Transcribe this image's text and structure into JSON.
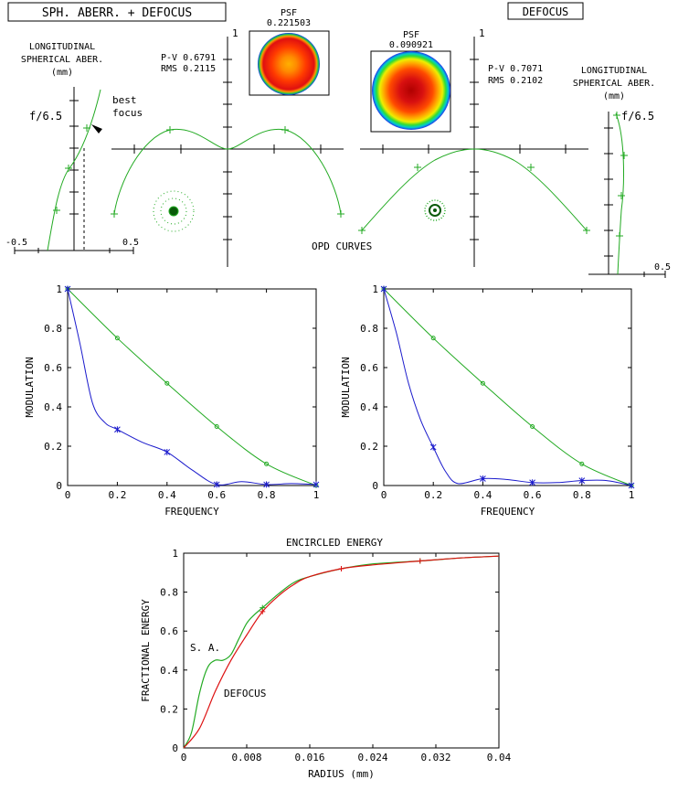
{
  "header": {
    "left_title": "SPH. ABERR. + DEFOCUS",
    "right_title": "DEFOCUS"
  },
  "psf": {
    "left": {
      "label": "PSF",
      "value": "0.221503"
    },
    "right": {
      "label": "PSF",
      "value": "0.090921"
    }
  },
  "stats": {
    "left": {
      "pv": "P-V 0.6791",
      "rms": "RMS 0.2115"
    },
    "right": {
      "pv": "P-V 0.7071",
      "rms": "RMS 0.2102"
    }
  },
  "lsa": {
    "left": {
      "title_lines": [
        "LONGITUDINAL",
        "SPHERICAL ABER.",
        "(mm)"
      ],
      "fnum": "f/6.5",
      "tick_min": "-0.5",
      "tick_max": "0.5",
      "best_focus_lines": [
        "best",
        "focus"
      ]
    },
    "right": {
      "title_lines": [
        "LONGITUDINAL",
        "SPHERICAL ABER.",
        "(mm)"
      ],
      "fnum": "f/6.5",
      "tick_max": "0.5"
    }
  },
  "opd_label": "OPD CURVES",
  "opd_axis_label": "1",
  "colors": {
    "curve": "#22aa22",
    "mtf_diff": "#22aa22",
    "mtf_real": "#1a1acc",
    "ee_sa": "#22aa22",
    "ee_defocus": "#dd1111",
    "axis": "#000000"
  },
  "chart_data": [
    {
      "type": "line",
      "id": "mtf_left",
      "xlabel": "FREQUENCY",
      "ylabel": "MODULATION",
      "xlim": [
        0,
        1
      ],
      "ylim": [
        0,
        1
      ],
      "x_ticks": [
        "0",
        "0.2",
        "0.4",
        "0.6",
        "0.8",
        "1"
      ],
      "y_ticks": [
        "0",
        "0.2",
        "0.4",
        "0.6",
        "0.8",
        "1"
      ],
      "series": [
        {
          "key": "diffraction",
          "x": [
            0,
            0.2,
            0.4,
            0.6,
            0.8,
            1.0
          ],
          "y": [
            1.0,
            0.75,
            0.52,
            0.3,
            0.11,
            0.0
          ]
        },
        {
          "key": "aberrated",
          "x": [
            0,
            0.05,
            0.1,
            0.15,
            0.2,
            0.3,
            0.4,
            0.5,
            0.6,
            0.7,
            0.8,
            0.9,
            1.0
          ],
          "y": [
            1.0,
            0.72,
            0.42,
            0.32,
            0.285,
            0.22,
            0.17,
            0.08,
            0.005,
            0.02,
            0.005,
            0.01,
            0.005
          ]
        }
      ]
    },
    {
      "type": "line",
      "id": "mtf_right",
      "xlabel": "FREQUENCY",
      "ylabel": "MODULATION",
      "xlim": [
        0,
        1
      ],
      "ylim": [
        0,
        1
      ],
      "x_ticks": [
        "0",
        "0.2",
        "0.4",
        "0.6",
        "0.8",
        "1"
      ],
      "y_ticks": [
        "0",
        "0.2",
        "0.4",
        "0.6",
        "0.8",
        "1"
      ],
      "series": [
        {
          "key": "diffraction",
          "x": [
            0,
            0.2,
            0.4,
            0.6,
            0.8,
            1.0
          ],
          "y": [
            1.0,
            0.75,
            0.52,
            0.3,
            0.11,
            0.0
          ]
        },
        {
          "key": "aberrated",
          "x": [
            0,
            0.05,
            0.1,
            0.15,
            0.2,
            0.25,
            0.3,
            0.4,
            0.5,
            0.6,
            0.7,
            0.8,
            0.9,
            1.0
          ],
          "y": [
            1.0,
            0.78,
            0.52,
            0.33,
            0.195,
            0.07,
            0.01,
            0.035,
            0.03,
            0.015,
            0.015,
            0.025,
            0.025,
            0.0
          ]
        }
      ]
    },
    {
      "type": "line",
      "id": "encircled_energy",
      "title": "ENCIRCLED ENERGY",
      "xlabel": "RADIUS (mm)",
      "ylabel": "FRACTIONAL ENERGY",
      "xlim": [
        0,
        0.04
      ],
      "ylim": [
        0,
        1
      ],
      "x_ticks": [
        "0",
        "0.008",
        "0.016",
        "0.024",
        "0.032",
        "0.04"
      ],
      "y_ticks": [
        "0",
        "0.2",
        "0.4",
        "0.6",
        "0.8",
        "1"
      ],
      "series": [
        {
          "name": "S. A.",
          "key": "sa",
          "x": [
            0,
            0.001,
            0.002,
            0.003,
            0.004,
            0.005,
            0.006,
            0.007,
            0.008,
            0.009,
            0.01,
            0.012,
            0.014,
            0.016,
            0.02,
            0.024,
            0.03,
            0.035,
            0.04
          ],
          "y": [
            0,
            0.08,
            0.28,
            0.41,
            0.45,
            0.45,
            0.48,
            0.56,
            0.64,
            0.685,
            0.72,
            0.79,
            0.85,
            0.88,
            0.92,
            0.945,
            0.96,
            0.975,
            0.985
          ]
        },
        {
          "name": "DEFOCUS",
          "key": "defocus",
          "x": [
            0,
            0.002,
            0.004,
            0.006,
            0.008,
            0.01,
            0.012,
            0.014,
            0.016,
            0.02,
            0.024,
            0.03,
            0.035,
            0.04
          ],
          "y": [
            0,
            0.1,
            0.29,
            0.45,
            0.58,
            0.7,
            0.78,
            0.84,
            0.88,
            0.92,
            0.94,
            0.96,
            0.975,
            0.985
          ]
        }
      ]
    }
  ]
}
